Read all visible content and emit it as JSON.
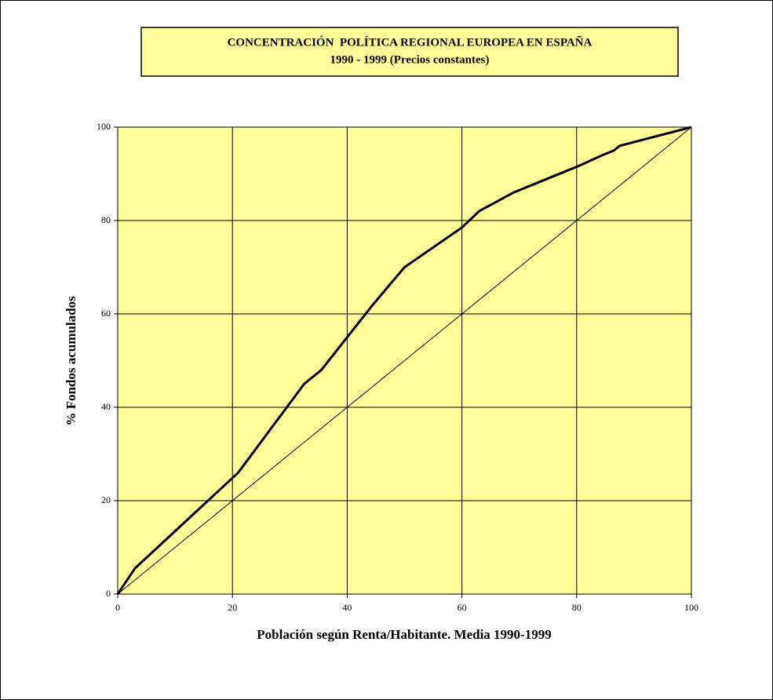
{
  "chart_data": {
    "type": "line",
    "title": [
      "CONCENTRACIÓN  POLÍTICA REGIONAL EUROPEA EN ESPAÑA",
      "1990 - 1999 (Precios constantes)"
    ],
    "x_label": "Población según Renta/Habitante. Media 1990-1999",
    "y_label": "% Fondos acumulados",
    "xlim": [
      0,
      100
    ],
    "ylim": [
      0,
      100
    ],
    "xticks": [
      0,
      20,
      40,
      60,
      80,
      100
    ],
    "yticks": [
      0,
      20,
      40,
      60,
      80,
      100
    ],
    "grid": true,
    "background": "#ffff99",
    "series": [
      {
        "color": "#000000",
        "width": 3,
        "x": [
          0,
          3,
          21,
          32.5,
          35.5,
          44.5,
          50,
          60,
          63,
          69,
          80,
          84.5,
          86.5,
          87.5,
          100
        ],
        "values": [
          0,
          5.5,
          26,
          45,
          48,
          62,
          70,
          78.5,
          82,
          86,
          91.5,
          94,
          95,
          96,
          100
        ]
      },
      {
        "color": "#000000",
        "width": 1,
        "x": [
          0,
          100
        ],
        "values": [
          0,
          100
        ]
      }
    ]
  }
}
